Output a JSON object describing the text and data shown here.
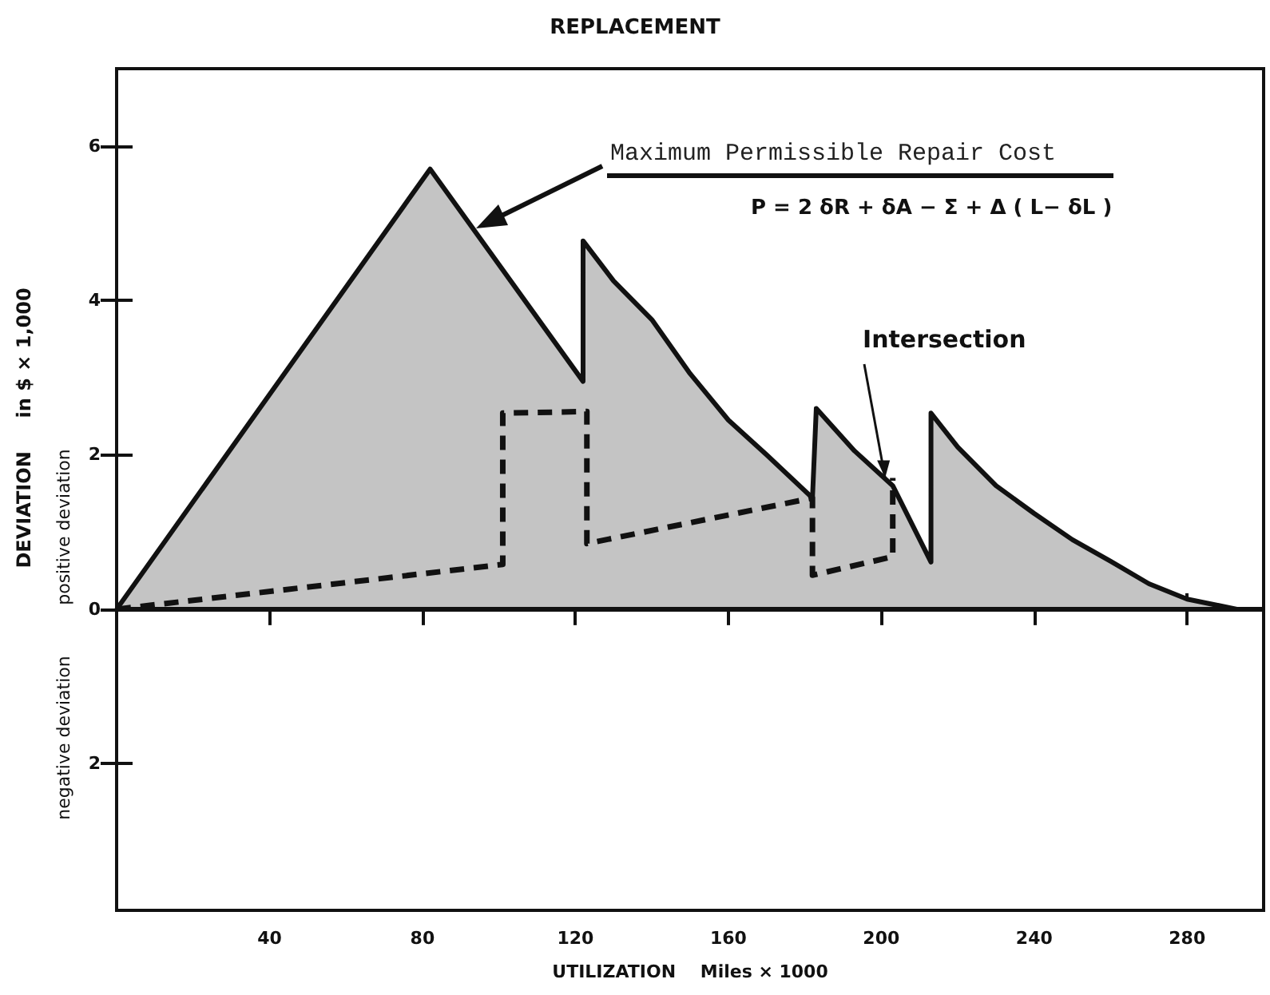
{
  "chart_data": {
    "type": "area",
    "title": "REPLACEMENT",
    "xlabel": "UTILIZATION    Miles × 1000",
    "ylabel": "DEVIATION     in $ × 1,000",
    "annotations": [
      "Maximum Permissible Repair Cost",
      "P = 2 δR + δA − Σ + Δ ( L− δL )",
      {
        "text": "Intersection",
        "x": 201,
        "y": 1.7
      },
      "positive deviation",
      "negative deviation"
    ],
    "series": [
      {
        "color": "#c4c4c4",
        "x": [
          0,
          82,
          122,
          122,
          130,
          140,
          150,
          160,
          170,
          182,
          183,
          193,
          203,
          213,
          213,
          220,
          230,
          240,
          250,
          260,
          270,
          280,
          293
        ],
        "values": [
          0,
          5.7,
          2.95,
          4.77,
          4.25,
          3.75,
          3.05,
          2.45,
          2.0,
          1.44,
          2.6,
          2.05,
          1.6,
          0.61,
          2.54,
          2.1,
          1.6,
          1.24,
          0.9,
          0.62,
          0.33,
          0.13,
          0
        ]
      },
      {
        "type": "line",
        "color": "#111111",
        "line_style": "dashed",
        "x": [
          0,
          101,
          101,
          123,
          123,
          182,
          182,
          203,
          203
        ],
        "values": [
          0,
          0.58,
          2.54,
          2.56,
          0.85,
          1.44,
          0.44,
          0.68,
          1.7
        ]
      }
    ],
    "xlim": [
      0,
      300
    ],
    "xticks": [
      40,
      80,
      120,
      160,
      200,
      240,
      280
    ],
    "ylim": [
      -3.9,
      7
    ],
    "yticks": [
      {
        "value": -2,
        "label": "2"
      },
      0,
      2,
      4,
      6
    ],
    "ref_lines": [
      {
        "axis": "y",
        "value": 0,
        "color": "#111111"
      }
    ],
    "grid": false,
    "marker": "none"
  }
}
